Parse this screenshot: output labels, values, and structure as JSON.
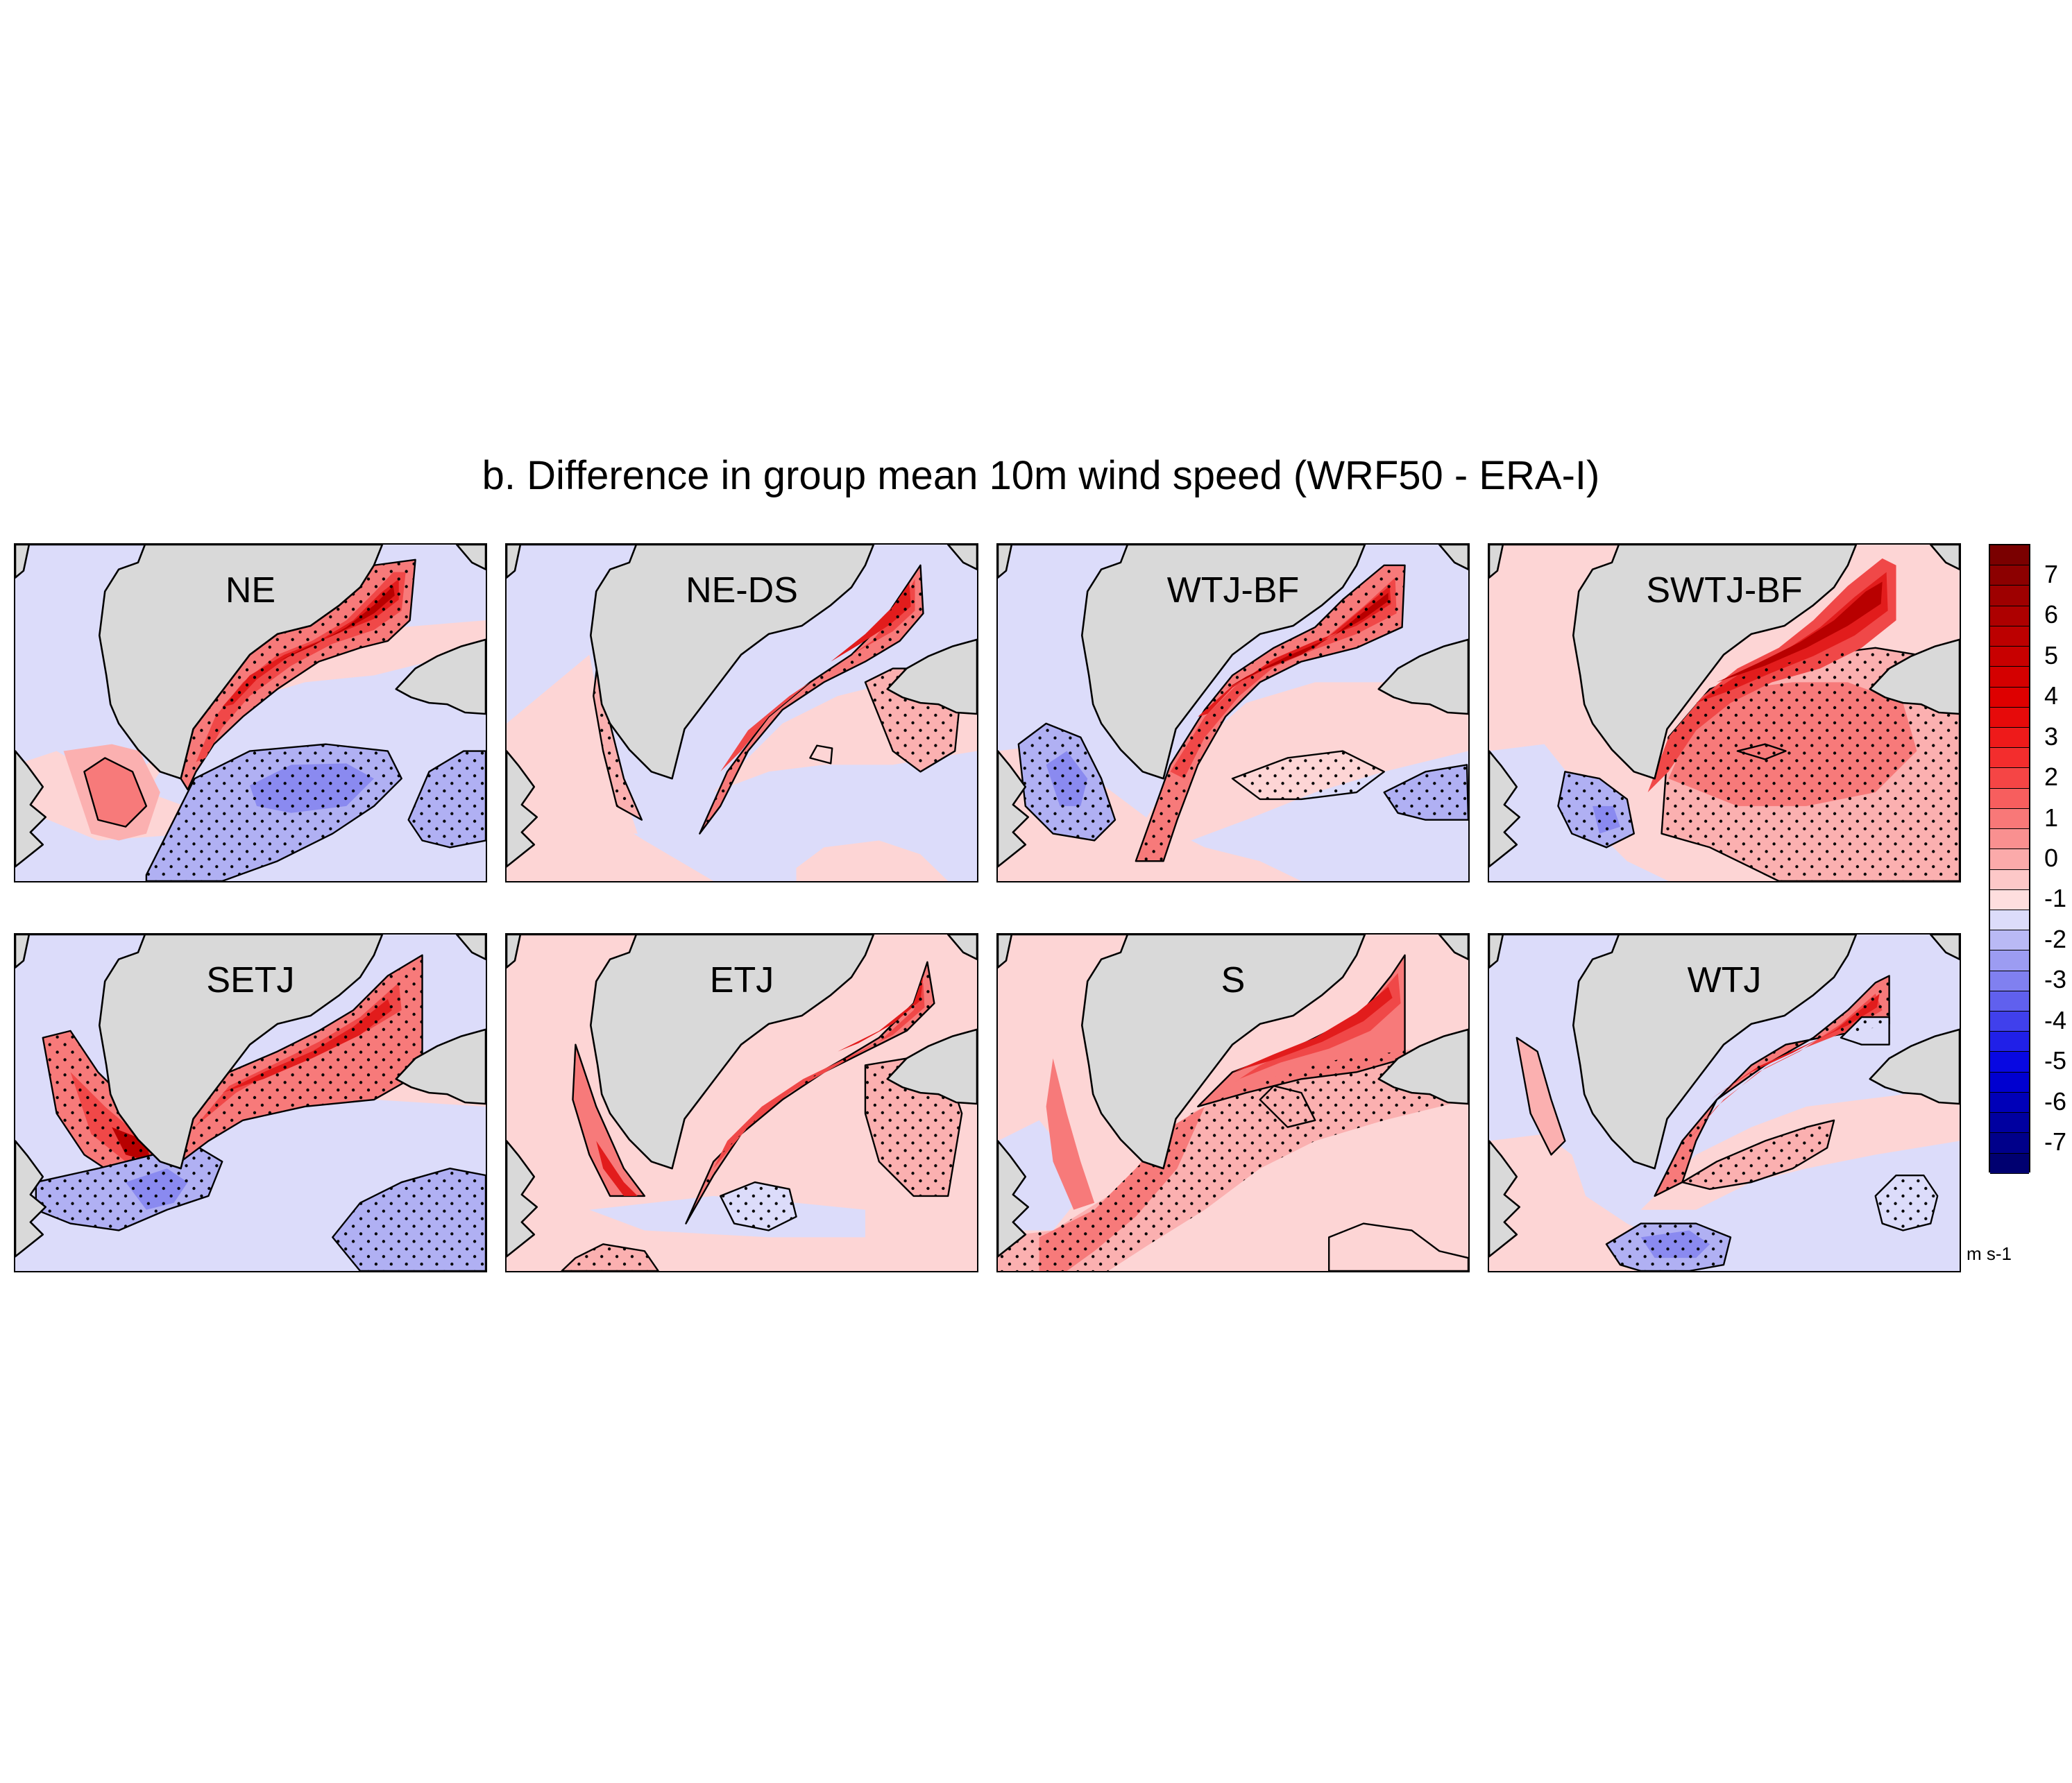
{
  "title": "b. Difference in group mean 10m wind speed (WRF50 - ERA-I)",
  "panels": [
    {
      "label": "NE",
      "pattern": "ne"
    },
    {
      "label": "NE-DS",
      "pattern": "neds"
    },
    {
      "label": "WTJ-BF",
      "pattern": "wtjbf"
    },
    {
      "label": "SWTJ-BF",
      "pattern": "swtjbf"
    },
    {
      "label": "SETJ",
      "pattern": "setj"
    },
    {
      "label": "ETJ",
      "pattern": "etj"
    },
    {
      "label": "S",
      "pattern": "s"
    },
    {
      "label": "WTJ",
      "pattern": "wtj"
    }
  ],
  "colorbar": {
    "units": "m s-1",
    "tick_labels": [
      "7",
      "6",
      "5",
      "4",
      "3",
      "2",
      "1",
      "0",
      "-1",
      "-2",
      "-3",
      "-4",
      "-5",
      "-6",
      "-7"
    ],
    "levels_top_to_bottom": [
      7.5,
      7,
      6.5,
      6,
      5.5,
      5,
      4.5,
      4,
      3.5,
      3,
      2.5,
      2,
      1.5,
      1,
      0.5,
      0,
      -0.5,
      -1,
      -1.5,
      -2,
      -2.5,
      -3,
      -3.5,
      -4,
      -4.5,
      -5,
      -5.5,
      -6,
      -6.5,
      -7,
      -7.5
    ],
    "colors_top_to_bottom": [
      "#7a0000",
      "#8c0000",
      "#9e0000",
      "#ad0000",
      "#bc0000",
      "#c80000",
      "#d40000",
      "#de0000",
      "#e60a0a",
      "#ee1a1a",
      "#f32d2d",
      "#f54545",
      "#f75e5e",
      "#f87878",
      "#f99090",
      "#fbaaaa",
      "#fdc8c8",
      "#fedede",
      "#dcdcfa",
      "#b9b9f5",
      "#9c9cf2",
      "#8080f0",
      "#6060ee",
      "#4040ec",
      "#2020e8",
      "#0808e2",
      "#0000d0",
      "#0000b8",
      "#0000a0",
      "#00008a",
      "#000070"
    ]
  },
  "colors": {
    "land": "#d9d9d9",
    "coast": "#000000"
  }
}
